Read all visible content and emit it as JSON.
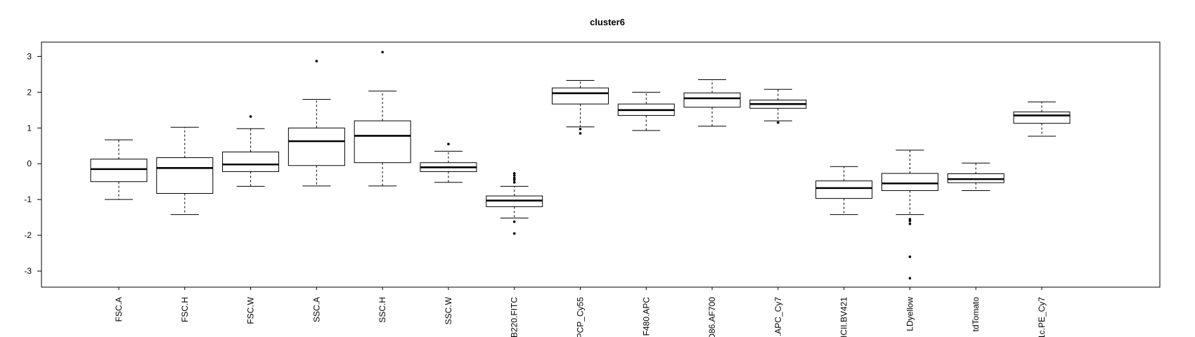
{
  "chart_data": {
    "type": "box",
    "title": "cluster6",
    "xlabel": "",
    "ylabel": "",
    "ylim": [
      -3.45,
      3.4
    ],
    "yticks": [
      3,
      2,
      1,
      0,
      -1,
      -2,
      -3
    ],
    "ytick_labels": [
      "3",
      "2",
      "1",
      "0",
      "-1",
      "-2",
      "-3"
    ],
    "grid": false,
    "categories": [
      "FSC.A",
      "FSC.H",
      "FSC.W",
      "SSC.A",
      "SSC.H",
      "SSC.W",
      "B220.FITC",
      "PCP_Cy55",
      "F480.APC",
      "D86.AF700",
      ".APC_Cy7",
      "HCII.BV421",
      "LDyellow",
      "tdTomato",
      "1c.PE_Cy7"
    ],
    "boxes": [
      {
        "lower_whisker": -1.0,
        "q1": -0.5,
        "median": -0.15,
        "q3": 0.13,
        "upper_whisker": 0.67,
        "outliers": []
      },
      {
        "lower_whisker": -1.42,
        "q1": -0.83,
        "median": -0.12,
        "q3": 0.17,
        "upper_whisker": 1.02,
        "outliers": []
      },
      {
        "lower_whisker": -0.63,
        "q1": -0.22,
        "median": -0.02,
        "q3": 0.33,
        "upper_whisker": 0.98,
        "outliers": [
          1.32
        ]
      },
      {
        "lower_whisker": -0.62,
        "q1": -0.05,
        "median": 0.63,
        "q3": 1.0,
        "upper_whisker": 1.8,
        "outliers": [
          2.87
        ]
      },
      {
        "lower_whisker": -0.62,
        "q1": 0.03,
        "median": 0.78,
        "q3": 1.2,
        "upper_whisker": 2.03,
        "outliers": [
          3.12
        ]
      },
      {
        "lower_whisker": -0.52,
        "q1": -0.22,
        "median": -0.1,
        "q3": 0.03,
        "upper_whisker": 0.35,
        "outliers": [
          0.55
        ]
      },
      {
        "lower_whisker": -1.52,
        "q1": -1.2,
        "median": -1.03,
        "q3": -0.9,
        "upper_whisker": -0.63,
        "outliers": [
          -0.27,
          -0.33,
          -0.4,
          -0.45,
          -0.52,
          -1.62,
          -1.95
        ]
      },
      {
        "lower_whisker": 1.03,
        "q1": 1.67,
        "median": 1.97,
        "q3": 2.12,
        "upper_whisker": 2.33,
        "outliers": [
          0.85,
          0.97
        ]
      },
      {
        "lower_whisker": 0.93,
        "q1": 1.35,
        "median": 1.5,
        "q3": 1.67,
        "upper_whisker": 2.0,
        "outliers": []
      },
      {
        "lower_whisker": 1.05,
        "q1": 1.58,
        "median": 1.83,
        "q3": 1.98,
        "upper_whisker": 2.35,
        "outliers": []
      },
      {
        "lower_whisker": 1.2,
        "q1": 1.55,
        "median": 1.67,
        "q3": 1.78,
        "upper_whisker": 2.08,
        "outliers": [
          1.15
        ]
      },
      {
        "lower_whisker": -1.42,
        "q1": -0.97,
        "median": -0.68,
        "q3": -0.48,
        "upper_whisker": -0.08,
        "outliers": []
      },
      {
        "lower_whisker": -1.42,
        "q1": -0.75,
        "median": -0.55,
        "q3": -0.27,
        "upper_whisker": 0.38,
        "outliers": [
          -1.55,
          -1.6,
          -1.68,
          -2.6,
          -3.2
        ]
      },
      {
        "lower_whisker": -0.75,
        "q1": -0.53,
        "median": -0.43,
        "q3": -0.28,
        "upper_whisker": 0.02,
        "outliers": []
      },
      {
        "lower_whisker": 0.77,
        "q1": 1.13,
        "median": 1.35,
        "q3": 1.45,
        "upper_whisker": 1.73,
        "outliers": []
      }
    ]
  }
}
